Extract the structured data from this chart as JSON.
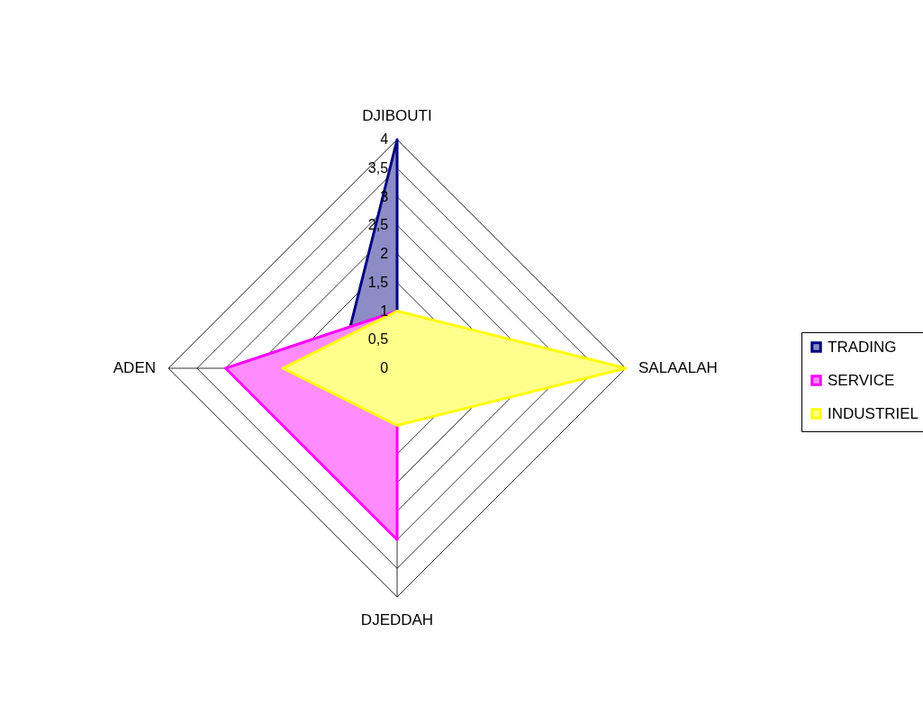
{
  "chart_data": {
    "type": "radar",
    "categories": [
      "DJIBOUTI",
      "SALAALAH",
      "DJEDDAH",
      "ADEN"
    ],
    "series": [
      {
        "name": "TRADING",
        "color": "#000080",
        "values": [
          4,
          0,
          0,
          1
        ]
      },
      {
        "name": "SERVICE",
        "color": "#ff00ff",
        "values": [
          1,
          0,
          3,
          3
        ]
      },
      {
        "name": "INDUSTRIEL",
        "color": "#ffff00",
        "values": [
          1,
          4,
          1,
          2
        ]
      }
    ],
    "ylim": [
      0,
      4
    ],
    "yticks": [
      0,
      {
        "value": 0.5,
        "label": "0,5"
      },
      1,
      {
        "value": 1.5,
        "label": "1,5"
      },
      2,
      {
        "value": 2.5,
        "label": "2,5"
      },
      3,
      {
        "value": 3.5,
        "label": "3,5"
      },
      4
    ],
    "grid": true,
    "legend": "right"
  }
}
